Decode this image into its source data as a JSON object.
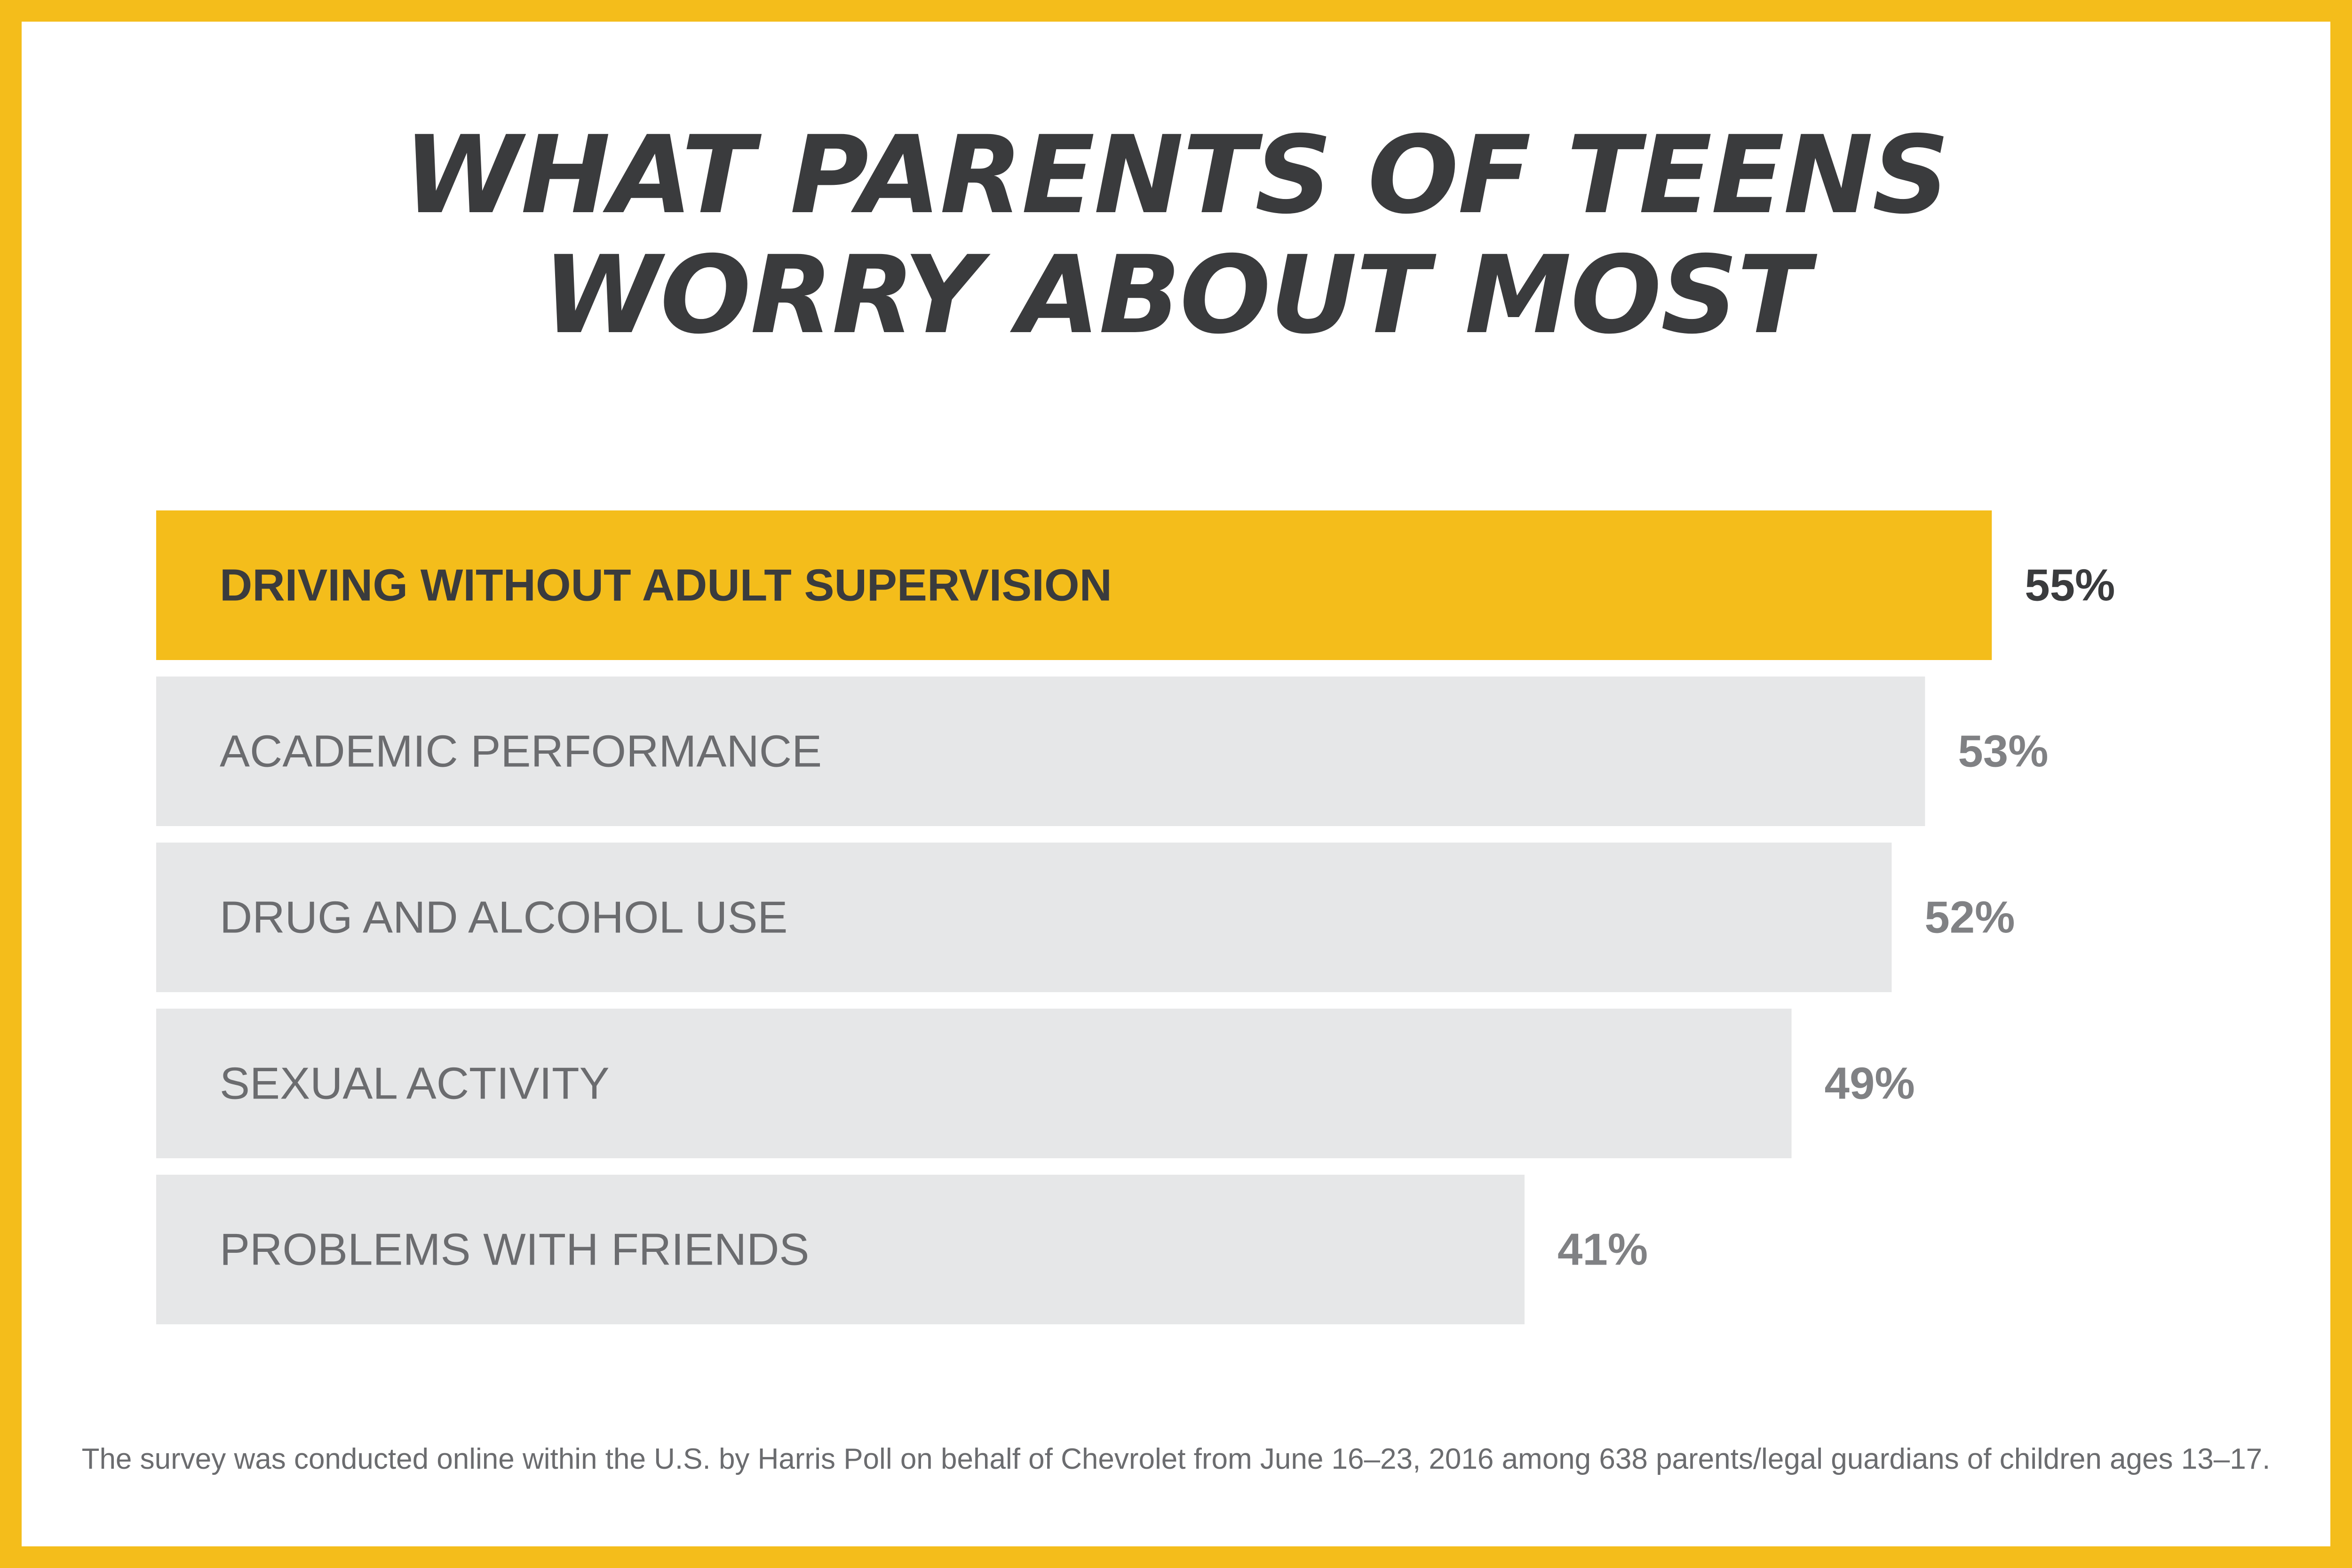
{
  "title_lines": [
    "WHAT PARENTS OF TEENS",
    "WORRY ABOUT MOST"
  ],
  "footnote": "The survey was conducted online within the U.S. by Harris Poll on behalf of Chevrolet from June 16–23, 2016 among 638 parents/legal guardians of children ages 13–17.",
  "colors": {
    "frame": "#F4BD1B",
    "highlight_bar": "#F4BD1B",
    "bar": "#E6E7E8",
    "title_text": "#3A3B3D",
    "highlight_text": "#3A3B3D",
    "label_text": "#6B6C6F",
    "value_text": "#808184"
  },
  "chart_data": {
    "type": "bar",
    "orientation": "horizontal",
    "categories": [
      "DRIVING WITHOUT ADULT SUPERVISION",
      "ACADEMIC PERFORMANCE",
      "DRUG AND ALCOHOL USE",
      "SEXUAL ACTIVITY",
      "PROBLEMS WITH FRIENDS"
    ],
    "values": [
      55,
      53,
      52,
      49,
      41
    ],
    "value_labels": [
      "55%",
      "53%",
      "52%",
      "49%",
      "41%"
    ],
    "unit": "%",
    "highlight_index": 0,
    "title": "WHAT PARENTS OF TEENS WORRY ABOUT MOST",
    "xlabel": "",
    "ylabel": "",
    "grid": false,
    "legend": "none"
  }
}
